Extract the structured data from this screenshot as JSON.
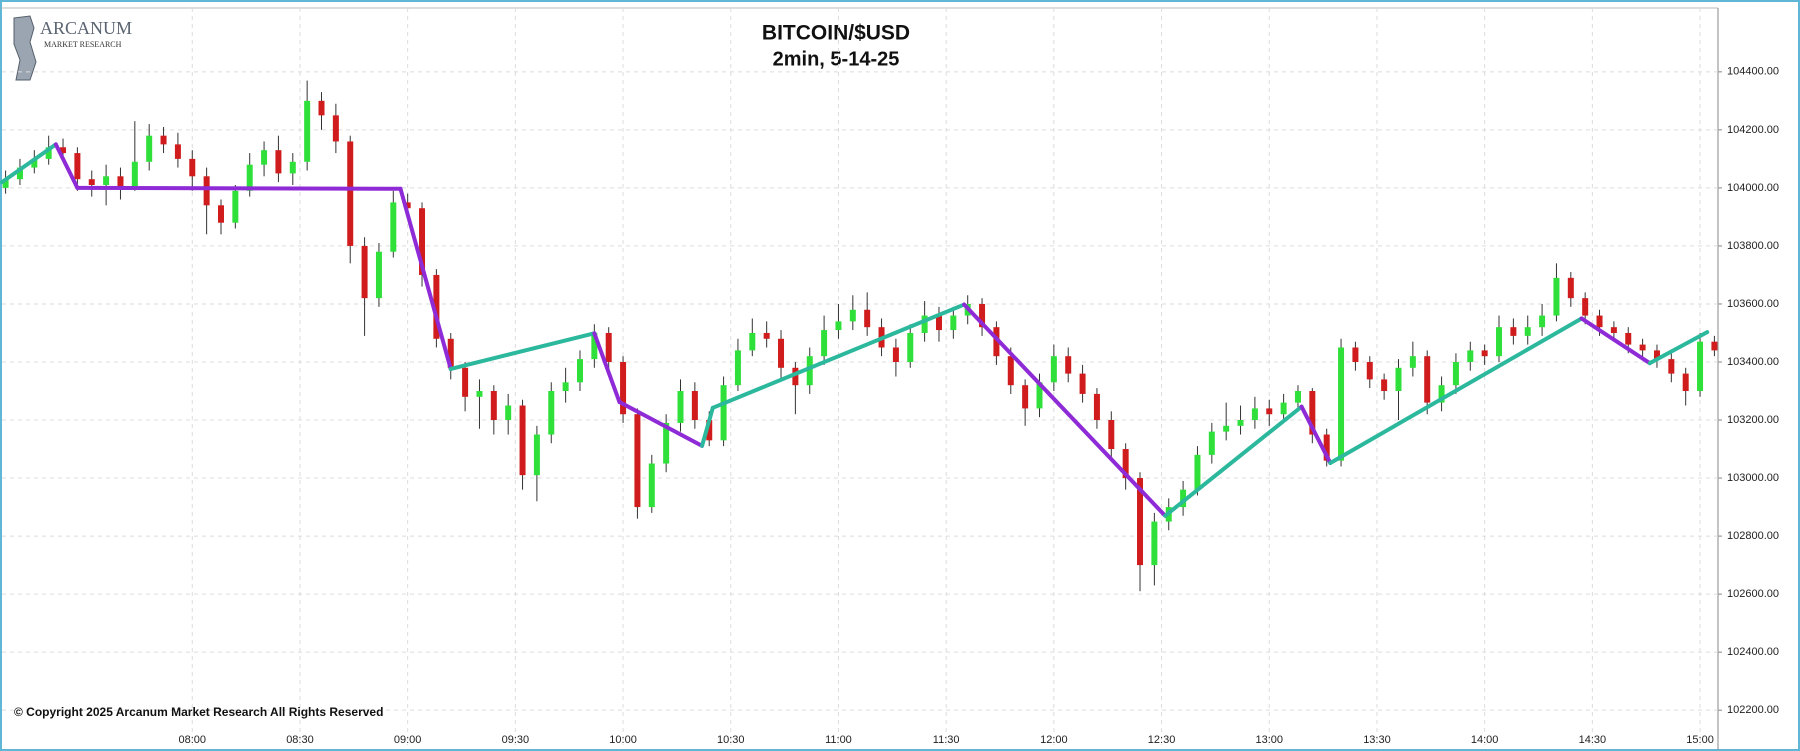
{
  "chart_data": {
    "type": "candlestick",
    "title": "BITCOIN/$USD",
    "subtitle": "2min, 5-14-25",
    "logo": {
      "name": "ARCANUM",
      "tagline": "MARKET RESEARCH"
    },
    "copyright": "© Copyright 2025 Arcanum Market Research All Rights Reserved",
    "up_color": "#2fe03a",
    "down_color": "#d01c1c",
    "grid": true,
    "xlim": [
      427,
      905
    ],
    "ylim": [
      102080,
      104620
    ],
    "xticks": [
      {
        "value": 480,
        "label": "08:00"
      },
      {
        "value": 510,
        "label": "08:30"
      },
      {
        "value": 540,
        "label": "09:00"
      },
      {
        "value": 570,
        "label": "09:30"
      },
      {
        "value": 600,
        "label": "10:00"
      },
      {
        "value": 630,
        "label": "10:30"
      },
      {
        "value": 660,
        "label": "11:00"
      },
      {
        "value": 690,
        "label": "11:30"
      },
      {
        "value": 720,
        "label": "12:00"
      },
      {
        "value": 750,
        "label": "12:30"
      },
      {
        "value": 780,
        "label": "13:00"
      },
      {
        "value": 810,
        "label": "13:30"
      },
      {
        "value": 840,
        "label": "14:00"
      },
      {
        "value": 870,
        "label": "14:30"
      },
      {
        "value": 900,
        "label": "15:00"
      }
    ],
    "yticks": [
      {
        "value": 102200,
        "label": "102200.00"
      },
      {
        "value": 102400,
        "label": "102400.00"
      },
      {
        "value": 102600,
        "label": "102600.00"
      },
      {
        "value": 102800,
        "label": "102800.00"
      },
      {
        "value": 103000,
        "label": "103000.00"
      },
      {
        "value": 103200,
        "label": "103200.00"
      },
      {
        "value": 103400,
        "label": "103400.00"
      },
      {
        "value": 103600,
        "label": "103600.00"
      },
      {
        "value": 103800,
        "label": "103800.00"
      },
      {
        "value": 104000,
        "label": "104000.00"
      },
      {
        "value": 104200,
        "label": "104200.00"
      },
      {
        "value": 104400,
        "label": "104400.00"
      }
    ],
    "candles": [
      [
        428,
        104000,
        104060,
        103980,
        104030
      ],
      [
        432,
        104030,
        104100,
        104010,
        104070
      ],
      [
        436,
        104070,
        104130,
        104050,
        104100
      ],
      [
        440,
        104100,
        104180,
        104080,
        104140
      ],
      [
        444,
        104140,
        104170,
        104090,
        104120
      ],
      [
        448,
        104120,
        104140,
        103990,
        104030
      ],
      [
        452,
        104030,
        104060,
        103970,
        104010
      ],
      [
        456,
        104010,
        104080,
        103940,
        104040
      ],
      [
        460,
        104040,
        104070,
        103960,
        104000
      ],
      [
        464,
        104000,
        104230,
        103990,
        104090
      ],
      [
        468,
        104090,
        104220,
        104060,
        104180
      ],
      [
        472,
        104180,
        104210,
        104120,
        104150
      ],
      [
        476,
        104150,
        104190,
        104070,
        104100
      ],
      [
        480,
        104100,
        104130,
        103990,
        104040
      ],
      [
        484,
        104040,
        104070,
        103840,
        103940
      ],
      [
        488,
        103940,
        103960,
        103840,
        103880
      ],
      [
        492,
        103880,
        104010,
        103860,
        103990
      ],
      [
        496,
        103990,
        104120,
        103970,
        104080
      ],
      [
        500,
        104080,
        104160,
        104040,
        104130
      ],
      [
        504,
        104130,
        104180,
        104020,
        104050
      ],
      [
        508,
        104050,
        104120,
        104010,
        104090
      ],
      [
        512,
        104090,
        104370,
        104060,
        104300
      ],
      [
        516,
        104300,
        104330,
        104200,
        104250
      ],
      [
        520,
        104250,
        104290,
        104120,
        104160
      ],
      [
        524,
        104160,
        104180,
        103740,
        103800
      ],
      [
        528,
        103800,
        103830,
        103490,
        103620
      ],
      [
        532,
        103620,
        103810,
        103590,
        103780
      ],
      [
        536,
        103780,
        103990,
        103760,
        103950
      ],
      [
        540,
        103950,
        103980,
        103900,
        103930
      ],
      [
        544,
        103930,
        103950,
        103660,
        103700
      ],
      [
        548,
        103700,
        103720,
        103450,
        103480
      ],
      [
        552,
        103480,
        103500,
        103340,
        103380
      ],
      [
        556,
        103380,
        103400,
        103230,
        103280
      ],
      [
        560,
        103280,
        103340,
        103170,
        103300
      ],
      [
        564,
        103300,
        103320,
        103150,
        103200
      ],
      [
        568,
        103200,
        103290,
        103150,
        103250
      ],
      [
        572,
        103250,
        103270,
        102960,
        103010
      ],
      [
        576,
        103010,
        103180,
        102920,
        103150
      ],
      [
        580,
        103150,
        103330,
        103120,
        103300
      ],
      [
        584,
        103300,
        103380,
        103260,
        103330
      ],
      [
        588,
        103330,
        103440,
        103300,
        103410
      ],
      [
        592,
        103410,
        103530,
        103380,
        103500
      ],
      [
        596,
        103500,
        103520,
        103360,
        103400
      ],
      [
        600,
        103400,
        103420,
        103190,
        103220
      ],
      [
        604,
        103220,
        103240,
        102860,
        102900
      ],
      [
        608,
        102900,
        103080,
        102880,
        103050
      ],
      [
        612,
        103050,
        103220,
        103020,
        103190
      ],
      [
        616,
        103190,
        103340,
        103160,
        103300
      ],
      [
        620,
        103300,
        103330,
        103170,
        103200
      ],
      [
        624,
        103200,
        103230,
        103110,
        103130
      ],
      [
        628,
        103130,
        103350,
        103110,
        103320
      ],
      [
        632,
        103320,
        103480,
        103300,
        103440
      ],
      [
        636,
        103440,
        103550,
        103420,
        103500
      ],
      [
        640,
        103500,
        103540,
        103450,
        103480
      ],
      [
        644,
        103480,
        103510,
        103340,
        103380
      ],
      [
        648,
        103380,
        103400,
        103220,
        103320
      ],
      [
        652,
        103320,
        103450,
        103290,
        103420
      ],
      [
        656,
        103420,
        103560,
        103390,
        103510
      ],
      [
        660,
        103510,
        103600,
        103480,
        103540
      ],
      [
        664,
        103540,
        103630,
        103510,
        103580
      ],
      [
        668,
        103580,
        103640,
        103490,
        103520
      ],
      [
        672,
        103520,
        103550,
        103420,
        103450
      ],
      [
        676,
        103450,
        103480,
        103350,
        103400
      ],
      [
        680,
        103400,
        103530,
        103380,
        103500
      ],
      [
        684,
        103500,
        103610,
        103470,
        103560
      ],
      [
        688,
        103560,
        103590,
        103470,
        103510
      ],
      [
        692,
        103510,
        103590,
        103480,
        103560
      ],
      [
        696,
        103560,
        103630,
        103530,
        103600
      ],
      [
        700,
        103600,
        103620,
        103490,
        103520
      ],
      [
        704,
        103520,
        103540,
        103390,
        103420
      ],
      [
        708,
        103420,
        103450,
        103290,
        103320
      ],
      [
        712,
        103320,
        103340,
        103180,
        103240
      ],
      [
        716,
        103240,
        103360,
        103210,
        103330
      ],
      [
        720,
        103330,
        103460,
        103300,
        103420
      ],
      [
        724,
        103420,
        103450,
        103330,
        103360
      ],
      [
        728,
        103360,
        103390,
        103260,
        103290
      ],
      [
        732,
        103290,
        103310,
        103170,
        103200
      ],
      [
        736,
        103200,
        103230,
        103070,
        103100
      ],
      [
        740,
        103100,
        103120,
        102960,
        103000
      ],
      [
        744,
        103000,
        103020,
        102610,
        102700
      ],
      [
        748,
        102700,
        102880,
        102630,
        102850
      ],
      [
        752,
        102850,
        102930,
        102820,
        102900
      ],
      [
        756,
        102900,
        102990,
        102870,
        102960
      ],
      [
        760,
        102960,
        103110,
        102940,
        103080
      ],
      [
        764,
        103080,
        103190,
        103050,
        103160
      ],
      [
        768,
        103160,
        103260,
        103130,
        103180
      ],
      [
        772,
        103180,
        103250,
        103150,
        103200
      ],
      [
        776,
        103200,
        103280,
        103170,
        103240
      ],
      [
        780,
        103240,
        103270,
        103180,
        103220
      ],
      [
        784,
        103220,
        103290,
        103200,
        103260
      ],
      [
        788,
        103260,
        103320,
        103230,
        103300
      ],
      [
        792,
        103300,
        103310,
        103120,
        103150
      ],
      [
        796,
        103150,
        103170,
        103040,
        103060
      ],
      [
        800,
        103060,
        103480,
        103040,
        103450
      ],
      [
        804,
        103450,
        103470,
        103370,
        103400
      ],
      [
        808,
        103400,
        103420,
        103310,
        103340
      ],
      [
        812,
        103340,
        103360,
        103270,
        103300
      ],
      [
        816,
        103300,
        103410,
        103200,
        103380
      ],
      [
        820,
        103380,
        103470,
        103350,
        103420
      ],
      [
        824,
        103420,
        103440,
        103220,
        103260
      ],
      [
        828,
        103260,
        103350,
        103230,
        103320
      ],
      [
        832,
        103320,
        103430,
        103290,
        103400
      ],
      [
        836,
        103400,
        103470,
        103370,
        103440
      ],
      [
        840,
        103440,
        103460,
        103390,
        103420
      ],
      [
        844,
        103420,
        103560,
        103400,
        103520
      ],
      [
        848,
        103520,
        103550,
        103460,
        103490
      ],
      [
        852,
        103490,
        103560,
        103460,
        103520
      ],
      [
        856,
        103520,
        103600,
        103490,
        103560
      ],
      [
        860,
        103560,
        103740,
        103540,
        103690
      ],
      [
        864,
        103690,
        103710,
        103590,
        103620
      ],
      [
        868,
        103620,
        103640,
        103530,
        103560
      ],
      [
        872,
        103560,
        103580,
        103490,
        103520
      ],
      [
        876,
        103520,
        103540,
        103470,
        103500
      ],
      [
        880,
        103500,
        103520,
        103430,
        103460
      ],
      [
        884,
        103460,
        103480,
        103410,
        103440
      ],
      [
        888,
        103440,
        103460,
        103380,
        103410
      ],
      [
        892,
        103410,
        103430,
        103330,
        103360
      ],
      [
        896,
        103360,
        103380,
        103250,
        103300
      ],
      [
        900,
        103300,
        103500,
        103280,
        103470
      ],
      [
        904,
        103470,
        103490,
        103420,
        103440
      ]
    ],
    "zigzag": {
      "up_color": "#2bb89c",
      "down_color": "#8e2bd6",
      "x": [
        427,
        442,
        448,
        538,
        552,
        592,
        599,
        622,
        625,
        695,
        751,
        789,
        797,
        867,
        886,
        902
      ],
      "values": [
        104020,
        104150,
        104000,
        103997,
        103376,
        103499,
        103262,
        103111,
        103242,
        103598,
        102870,
        103246,
        103052,
        103550,
        103396,
        103503
      ]
    }
  }
}
